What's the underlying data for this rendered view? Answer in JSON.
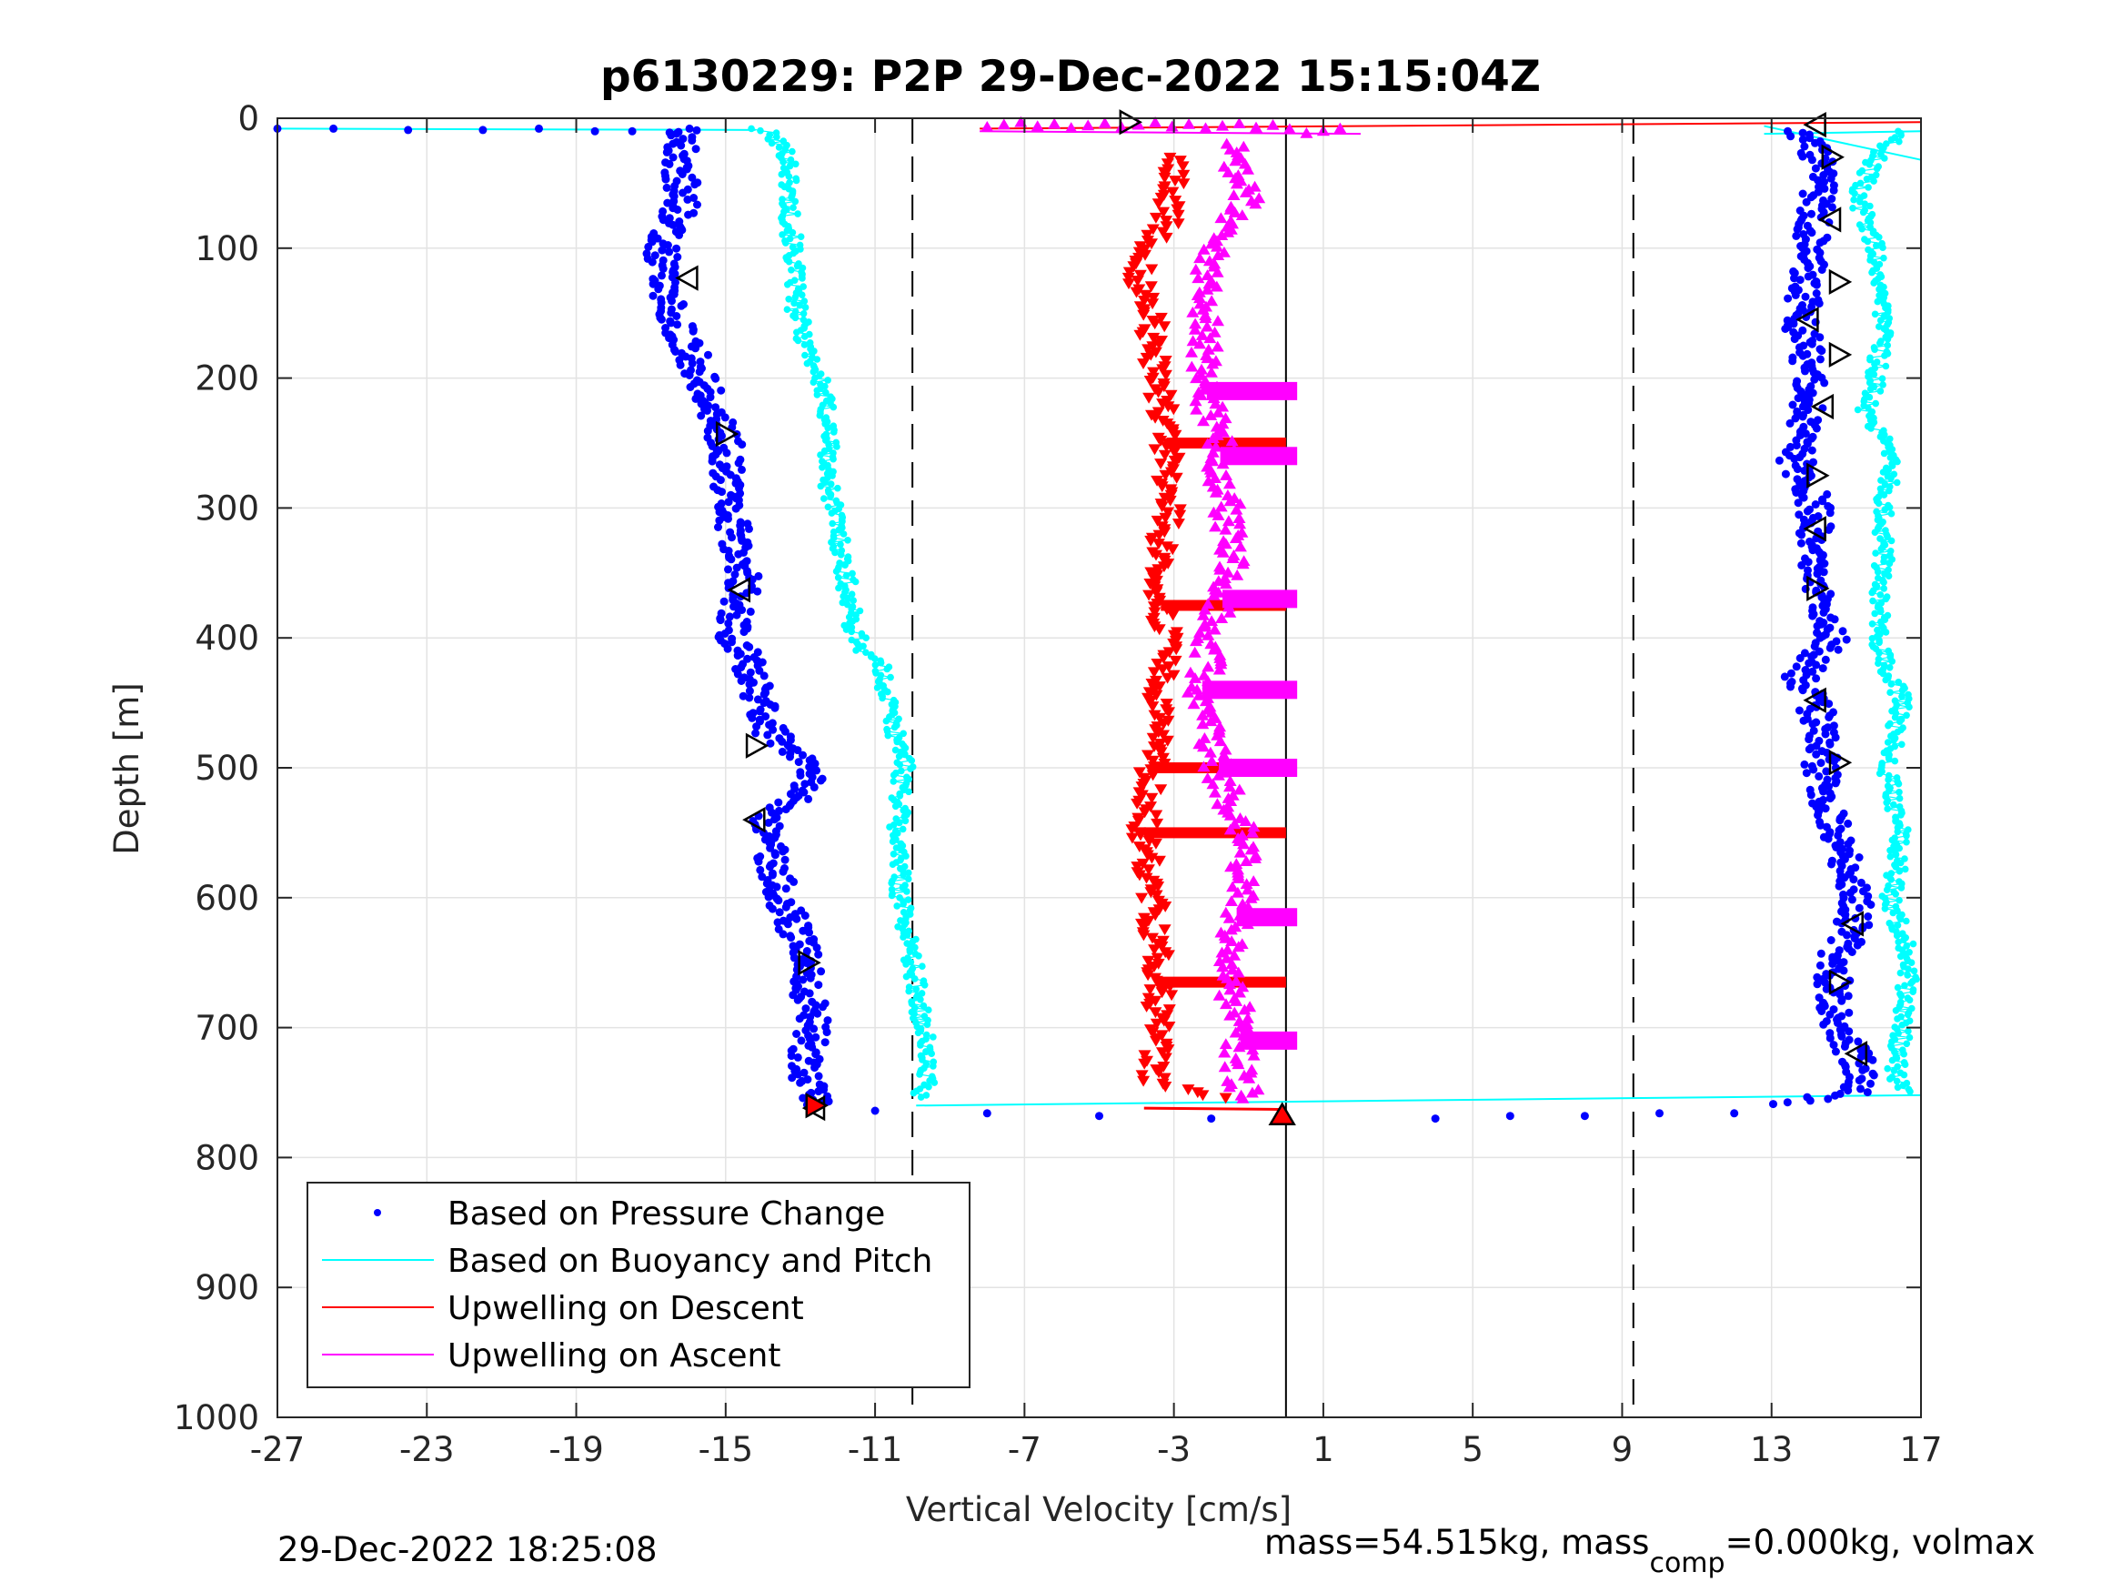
{
  "chart_data": {
    "type": "scatter",
    "title": "p6130229: P2P 29-Dec-2022 15:15:04Z",
    "xlabel": "Vertical Velocity [cm/s]",
    "ylabel": "Depth [m]",
    "xlim": [
      -27,
      17
    ],
    "ylim": [
      0,
      1000
    ],
    "y_reversed": true,
    "grid": true,
    "xticks": [
      "-27",
      "-23",
      "-19",
      "-15",
      "-11",
      "-7",
      "-3",
      "1",
      "5",
      "9",
      "13",
      "17"
    ],
    "yticks": [
      "0",
      "100",
      "200",
      "300",
      "400",
      "500",
      "600",
      "700",
      "800",
      "900",
      "1000"
    ],
    "vertical_lines": [
      {
        "x": -10,
        "style": "dashed"
      },
      {
        "x": 0,
        "style": "solid"
      },
      {
        "x": 9.3,
        "style": "dashed"
      }
    ],
    "legend": {
      "position": "bottom-left",
      "entries": [
        {
          "label": "Based on Pressure Change",
          "color": "#0000ff",
          "marker": "dot"
        },
        {
          "label": "Based on Buoyancy and Pitch",
          "color": "#00ffff",
          "marker": "line"
        },
        {
          "label": "Upwelling on Descent",
          "color": "#ff0000",
          "marker": "line"
        },
        {
          "label": "Upwelling on Ascent",
          "color": "#ff00ff",
          "marker": "line"
        }
      ]
    },
    "series": [
      {
        "name": "Based on Pressure Change",
        "color": "#0000ff",
        "marker": "dot",
        "profiles": [
          {
            "depth": [
              8,
              12,
              30,
              60,
              100,
              130,
              160,
              200,
              250,
              300,
              350,
              400,
              420,
              470,
              500,
              520,
              540,
              600,
              650,
              700,
              740,
              760
            ],
            "velocity": [
              -15.8,
              -16.0,
              -16.3,
              -16.1,
              -16.7,
              -16.6,
              -16.3,
              -15.6,
              -15.0,
              -14.9,
              -14.5,
              -14.8,
              -14.4,
              -13.9,
              -12.7,
              -12.9,
              -14.0,
              -13.5,
              -12.8,
              -12.7,
              -12.9,
              -12.4
            ]
          },
          {
            "depth": [
              10,
              20,
              50,
              100,
              130,
              160,
              190,
              230,
              260,
              300,
              350,
              400,
              430,
              470,
              500,
              550,
              600,
              630,
              650,
              700,
              730,
              750,
              760
            ],
            "velocity": [
              13.6,
              14.1,
              14.3,
              14.0,
              13.9,
              13.8,
              14.0,
              14.0,
              13.6,
              14.2,
              14.0,
              14.6,
              13.8,
              14.4,
              14.3,
              14.7,
              15.3,
              15.1,
              14.6,
              14.8,
              15.4,
              15.2,
              12.9
            ]
          },
          {
            "depth": [
              8,
              8,
              9,
              9,
              8,
              10,
              10,
              11
            ],
            "velocity": [
              -27,
              -25.5,
              -23.5,
              -21.5,
              -20,
              -18.5,
              -17.5,
              -16.5
            ]
          },
          {
            "depth": [
              764,
              766,
              768,
              770,
              770,
              768,
              768,
              766,
              766
            ],
            "velocity": [
              -11,
              -8,
              -5,
              -2,
              4,
              6,
              8,
              10,
              12
            ]
          }
        ]
      },
      {
        "name": "Based on Buoyancy and Pitch",
        "color": "#00ffff",
        "marker": "dot-line",
        "profiles": [
          {
            "depth": [
              8,
              12,
              30,
              70,
              100,
              150,
              200,
              240,
              270,
              300,
              350,
              390,
              410,
              420,
              440,
              470,
              490,
              550,
              600,
              650,
              700,
              740,
              755
            ],
            "velocity": [
              -14.2,
              -13.8,
              -13.3,
              -13.3,
              -13.2,
              -13.1,
              -12.5,
              -12.2,
              -12.3,
              -12.1,
              -11.8,
              -11.6,
              -11.3,
              -10.9,
              -10.7,
              -10.5,
              -10.2,
              -10.4,
              -10.3,
              -10.0,
              -9.7,
              -9.6,
              -9.9
            ]
          },
          {
            "depth": [
              10,
              30,
              60,
              100,
              150,
              200,
              230,
              250,
              300,
              350,
              400,
              450,
              500,
              550,
              600,
              650,
              700,
              740,
              750
            ],
            "velocity": [
              16.5,
              15.8,
              15.3,
              15.8,
              16.0,
              15.8,
              15.5,
              16.3,
              16.0,
              16.0,
              15.8,
              16.5,
              16.1,
              16.5,
              16.2,
              16.7,
              16.5,
              16.3,
              16.8
            ]
          }
        ]
      },
      {
        "name": "Upwelling on Descent",
        "color": "#ff0000",
        "marker": "triangle-down",
        "profiles": [
          {
            "depth": [
              30,
              80,
              120,
              150,
              200,
              250,
              300,
              350,
              400,
              450,
              500,
              550,
              600,
              650,
              700,
              740,
              760
            ],
            "velocity": [
              -3.0,
              -3.2,
              -4.0,
              -3.6,
              -3.5,
              -3.2,
              -3.1,
              -3.5,
              -3.2,
              -3.4,
              -3.6,
              -3.8,
              -3.6,
              -3.4,
              -3.4,
              -3.6,
              -1.0
            ]
          }
        ]
      },
      {
        "name": "Upwelling on Ascent",
        "color": "#ff00ff",
        "marker": "triangle-up",
        "profiles": [
          {
            "depth": [
              20,
              60,
              100,
              150,
              200,
              250,
              300,
              350,
              400,
              450,
              500,
              550,
              600,
              650,
              700,
              740,
              760
            ],
            "velocity": [
              -1.5,
              -1.0,
              -2.0,
              -2.2,
              -2.2,
              -1.8,
              -1.6,
              -1.5,
              -2.0,
              -2.3,
              -1.8,
              -1.2,
              -1.2,
              -1.6,
              -1.2,
              -1.3,
              -0.8
            ]
          }
        ]
      }
    ],
    "markers": {
      "open_triangles": [
        {
          "x": -16.0,
          "y": 123
        },
        {
          "x": -15.0,
          "y": 243
        },
        {
          "x": -14.6,
          "y": 363
        },
        {
          "x": -14.2,
          "y": 483
        },
        {
          "x": -14.2,
          "y": 540
        },
        {
          "x": -12.8,
          "y": 650
        },
        {
          "x": -12.6,
          "y": 762
        },
        {
          "x": -4.2,
          "y": 3
        },
        {
          "x": 14.2,
          "y": 5
        },
        {
          "x": 14.6,
          "y": 30
        },
        {
          "x": 14.6,
          "y": 78
        },
        {
          "x": 14.8,
          "y": 126
        },
        {
          "x": 14.0,
          "y": 155
        },
        {
          "x": 14.8,
          "y": 182
        },
        {
          "x": 14.4,
          "y": 222
        },
        {
          "x": 14.2,
          "y": 275
        },
        {
          "x": 14.2,
          "y": 316
        },
        {
          "x": 14.2,
          "y": 362
        },
        {
          "x": 14.2,
          "y": 448
        },
        {
          "x": 14.8,
          "y": 496
        },
        {
          "x": 15.2,
          "y": 620
        },
        {
          "x": 14.8,
          "y": 665
        },
        {
          "x": 15.3,
          "y": 720
        }
      ],
      "filled_triangle": {
        "x": -0.1,
        "y": 768
      },
      "filled_triangle_bottom": {
        "x": -12.6,
        "y": 760
      }
    }
  },
  "footer": {
    "left": "29-Dec-2022 18:25:08",
    "right_main": "mass=54.515kg, mass",
    "right_sub": "comp",
    "right_rest": "=0.000kg, volmax"
  }
}
